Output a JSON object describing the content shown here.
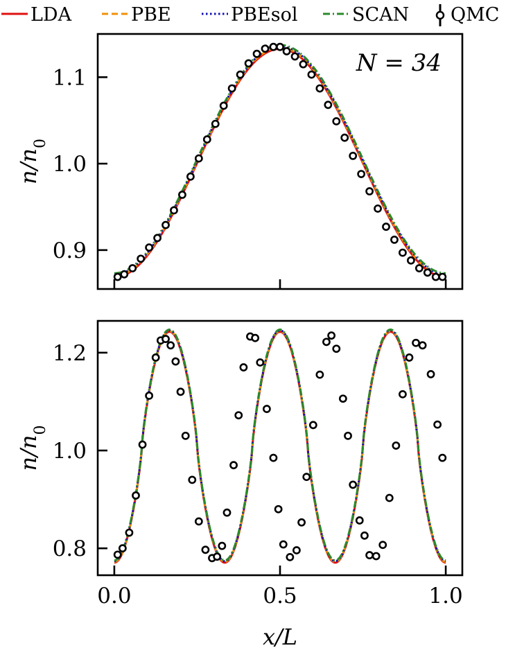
{
  "figure": {
    "legend": {
      "placement": "top",
      "entries": [
        {
          "label": "LDA",
          "color": "#e01010",
          "style": "solid"
        },
        {
          "label": "PBE",
          "color": "#f0900a",
          "style": "dashed"
        },
        {
          "label": "PBEsol",
          "color": "#1010b0",
          "style": "dotted"
        },
        {
          "label": "SCAN",
          "color": "#2a8a2a",
          "style": "dashdot"
        },
        {
          "label": "QMC",
          "color": "#000000",
          "style": "marker-errorbar"
        }
      ]
    },
    "xlabel": "x/L",
    "x_ticks": [
      "0.0",
      "0.5",
      "1.0"
    ]
  },
  "chart_data": [
    {
      "type": "line",
      "annotation": "N = 34",
      "ylabel": "n/n0",
      "xlim": [
        -0.05,
        1.05
      ],
      "ylim": [
        0.855,
        1.15
      ],
      "y_ticks": [
        0.9,
        1.0,
        1.1
      ],
      "y_tick_labels": [
        "0.9",
        "1.0",
        "1.1"
      ],
      "x_ticks": [
        0.0,
        0.5,
        1.0
      ],
      "grid": false,
      "model": {
        "form": "cosine",
        "periods": 1,
        "mean": 1.003,
        "amplitude": 0.132
      },
      "series": [
        {
          "name": "LDA"
        },
        {
          "name": "PBE"
        },
        {
          "name": "PBEsol"
        },
        {
          "name": "SCAN"
        }
      ],
      "qmc": {
        "x": [
          0.01,
          0.03,
          0.055,
          0.08,
          0.105,
          0.13,
          0.155,
          0.18,
          0.205,
          0.23,
          0.255,
          0.28,
          0.305,
          0.33,
          0.355,
          0.38,
          0.405,
          0.43,
          0.455,
          0.48,
          0.5,
          0.52,
          0.545,
          0.57,
          0.595,
          0.62,
          0.645,
          0.67,
          0.695,
          0.72,
          0.745,
          0.77,
          0.795,
          0.82,
          0.845,
          0.87,
          0.895,
          0.92,
          0.945,
          0.97,
          0.99
        ],
        "y": [
          0.869,
          0.872,
          0.879,
          0.89,
          0.903,
          0.914,
          0.929,
          0.946,
          0.964,
          0.985,
          1.006,
          1.028,
          1.046,
          1.067,
          1.087,
          1.103,
          1.116,
          1.127,
          1.133,
          1.135,
          1.135,
          1.13,
          1.124,
          1.115,
          1.103,
          1.087,
          1.068,
          1.049,
          1.03,
          1.009,
          0.988,
          0.968,
          0.948,
          0.927,
          0.912,
          0.897,
          0.888,
          0.879,
          0.874,
          0.869,
          0.869
        ]
      }
    },
    {
      "type": "line",
      "ylabel": "n/n0",
      "xlim": [
        -0.05,
        1.05
      ],
      "ylim": [
        0.745,
        1.265
      ],
      "y_ticks": [
        0.8,
        1.0,
        1.2
      ],
      "y_tick_labels": [
        "0.8",
        "1.0",
        "1.2"
      ],
      "x_ticks": [
        0.0,
        0.5,
        1.0
      ],
      "x_tick_labels": [
        "0.0",
        "0.5",
        "1.0"
      ],
      "xlabel": "x/L",
      "grid": false,
      "model": {
        "form": "sharpened-cosine",
        "periods": 3,
        "min": 0.773,
        "max": 1.245,
        "sharpness": 0.8
      },
      "series": [
        {
          "name": "LDA"
        },
        {
          "name": "PBE"
        },
        {
          "name": "PBEsol"
        },
        {
          "name": "SCAN"
        }
      ],
      "qmc": {
        "x": [
          0.01,
          0.025,
          0.045,
          0.065,
          0.085,
          0.105,
          0.125,
          0.14,
          0.155,
          0.17,
          0.185,
          0.2,
          0.215,
          0.235,
          0.255,
          0.275,
          0.295,
          0.31,
          0.325,
          0.34,
          0.36,
          0.375,
          0.39,
          0.41,
          0.425,
          0.44,
          0.46,
          0.48,
          0.495,
          0.51,
          0.53,
          0.55,
          0.565,
          0.58,
          0.6,
          0.62,
          0.64,
          0.655,
          0.67,
          0.69,
          0.705,
          0.72,
          0.74,
          0.755,
          0.77,
          0.79,
          0.81,
          0.83,
          0.85,
          0.87,
          0.89,
          0.91,
          0.93,
          0.955,
          0.975,
          0.99
        ],
        "y": [
          0.787,
          0.8,
          0.832,
          0.908,
          1.012,
          1.112,
          1.19,
          1.225,
          1.228,
          1.215,
          1.182,
          1.12,
          1.03,
          0.94,
          0.855,
          0.797,
          0.78,
          0.783,
          0.805,
          0.873,
          0.97,
          1.072,
          1.17,
          1.233,
          1.23,
          1.18,
          1.085,
          0.985,
          0.88,
          0.808,
          0.782,
          0.796,
          0.853,
          0.946,
          1.052,
          1.155,
          1.222,
          1.235,
          1.208,
          1.106,
          1.03,
          0.93,
          0.857,
          0.826,
          0.786,
          0.784,
          0.807,
          0.903,
          1.01,
          1.115,
          1.19,
          1.22,
          1.215,
          1.156,
          1.053,
          0.985
        ]
      }
    }
  ]
}
